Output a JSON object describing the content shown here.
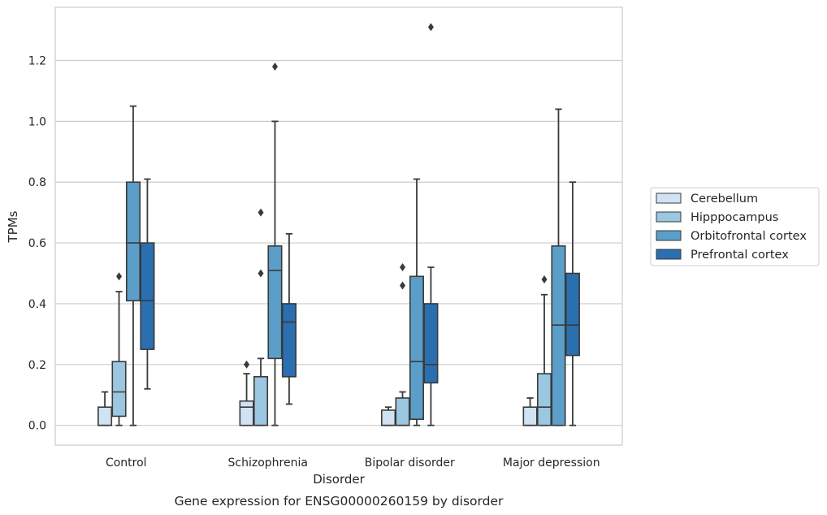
{
  "chart_data": {
    "type": "box",
    "xlabel": "Disorder",
    "ylabel": "TPMs",
    "caption": "Gene expression for ENSG00000260159 by disorder",
    "ylim": [
      -0.065,
      1.375
    ],
    "yticks": [
      "0.0",
      "0.2",
      "0.4",
      "0.6",
      "0.8",
      "1.0",
      "1.2"
    ],
    "yticks_values": [
      0.0,
      0.2,
      0.4,
      0.6,
      0.8,
      1.0,
      1.2
    ],
    "grid": "horizontal",
    "legend_position": "right",
    "categories": [
      "Control",
      "Schizophrenia",
      "Bipolar disorder",
      "Major depression"
    ],
    "series": [
      {
        "name": "Cerebellum",
        "color": "#d1e2f2",
        "boxes": [
          {
            "whisker_low": 0.0,
            "q1": 0.0,
            "median": 0.0,
            "q3": 0.06,
            "whisker_high": 0.11,
            "outliers": []
          },
          {
            "whisker_low": 0.0,
            "q1": 0.0,
            "median": 0.06,
            "q3": 0.08,
            "whisker_high": 0.17,
            "outliers": [
              0.2
            ]
          },
          {
            "whisker_low": 0.0,
            "q1": 0.0,
            "median": 0.0,
            "q3": 0.05,
            "whisker_high": 0.06,
            "outliers": []
          },
          {
            "whisker_low": 0.0,
            "q1": 0.0,
            "median": 0.0,
            "q3": 0.06,
            "whisker_high": 0.09,
            "outliers": []
          }
        ]
      },
      {
        "name": "Hipppocampus",
        "color": "#9bc7e0",
        "boxes": [
          {
            "whisker_low": 0.0,
            "q1": 0.03,
            "median": 0.11,
            "q3": 0.21,
            "whisker_high": 0.44,
            "outliers": [
              0.49
            ]
          },
          {
            "whisker_low": 0.0,
            "q1": 0.0,
            "median": 0.0,
            "q3": 0.16,
            "whisker_high": 0.22,
            "outliers": [
              0.5,
              0.7
            ]
          },
          {
            "whisker_low": 0.0,
            "q1": 0.0,
            "median": 0.0,
            "q3": 0.09,
            "whisker_high": 0.11,
            "outliers": [
              0.46,
              0.52
            ]
          },
          {
            "whisker_low": 0.0,
            "q1": 0.0,
            "median": 0.06,
            "q3": 0.17,
            "whisker_high": 0.43,
            "outliers": [
              0.48
            ]
          }
        ]
      },
      {
        "name": "Orbitofrontal cortex",
        "color": "#5b9ec9",
        "boxes": [
          {
            "whisker_low": 0.0,
            "q1": 0.41,
            "median": 0.6,
            "q3": 0.8,
            "whisker_high": 1.05,
            "outliers": []
          },
          {
            "whisker_low": 0.0,
            "q1": 0.22,
            "median": 0.51,
            "q3": 0.59,
            "whisker_high": 1.0,
            "outliers": [
              1.18
            ]
          },
          {
            "whisker_low": 0.0,
            "q1": 0.02,
            "median": 0.21,
            "q3": 0.49,
            "whisker_high": 0.81,
            "outliers": []
          },
          {
            "whisker_low": 0.0,
            "q1": 0.0,
            "median": 0.33,
            "q3": 0.59,
            "whisker_high": 1.04,
            "outliers": []
          }
        ]
      },
      {
        "name": "Prefrontal cortex",
        "color": "#2a6fb0",
        "boxes": [
          {
            "whisker_low": 0.12,
            "q1": 0.25,
            "median": 0.41,
            "q3": 0.6,
            "whisker_high": 0.81,
            "outliers": []
          },
          {
            "whisker_low": 0.07,
            "q1": 0.16,
            "median": 0.34,
            "q3": 0.4,
            "whisker_high": 0.63,
            "outliers": []
          },
          {
            "whisker_low": 0.0,
            "q1": 0.14,
            "median": 0.2,
            "q3": 0.4,
            "whisker_high": 0.52,
            "outliers": [
              1.31
            ]
          },
          {
            "whisker_low": 0.0,
            "q1": 0.23,
            "median": 0.33,
            "q3": 0.5,
            "whisker_high": 0.8,
            "outliers": []
          }
        ]
      }
    ]
  }
}
